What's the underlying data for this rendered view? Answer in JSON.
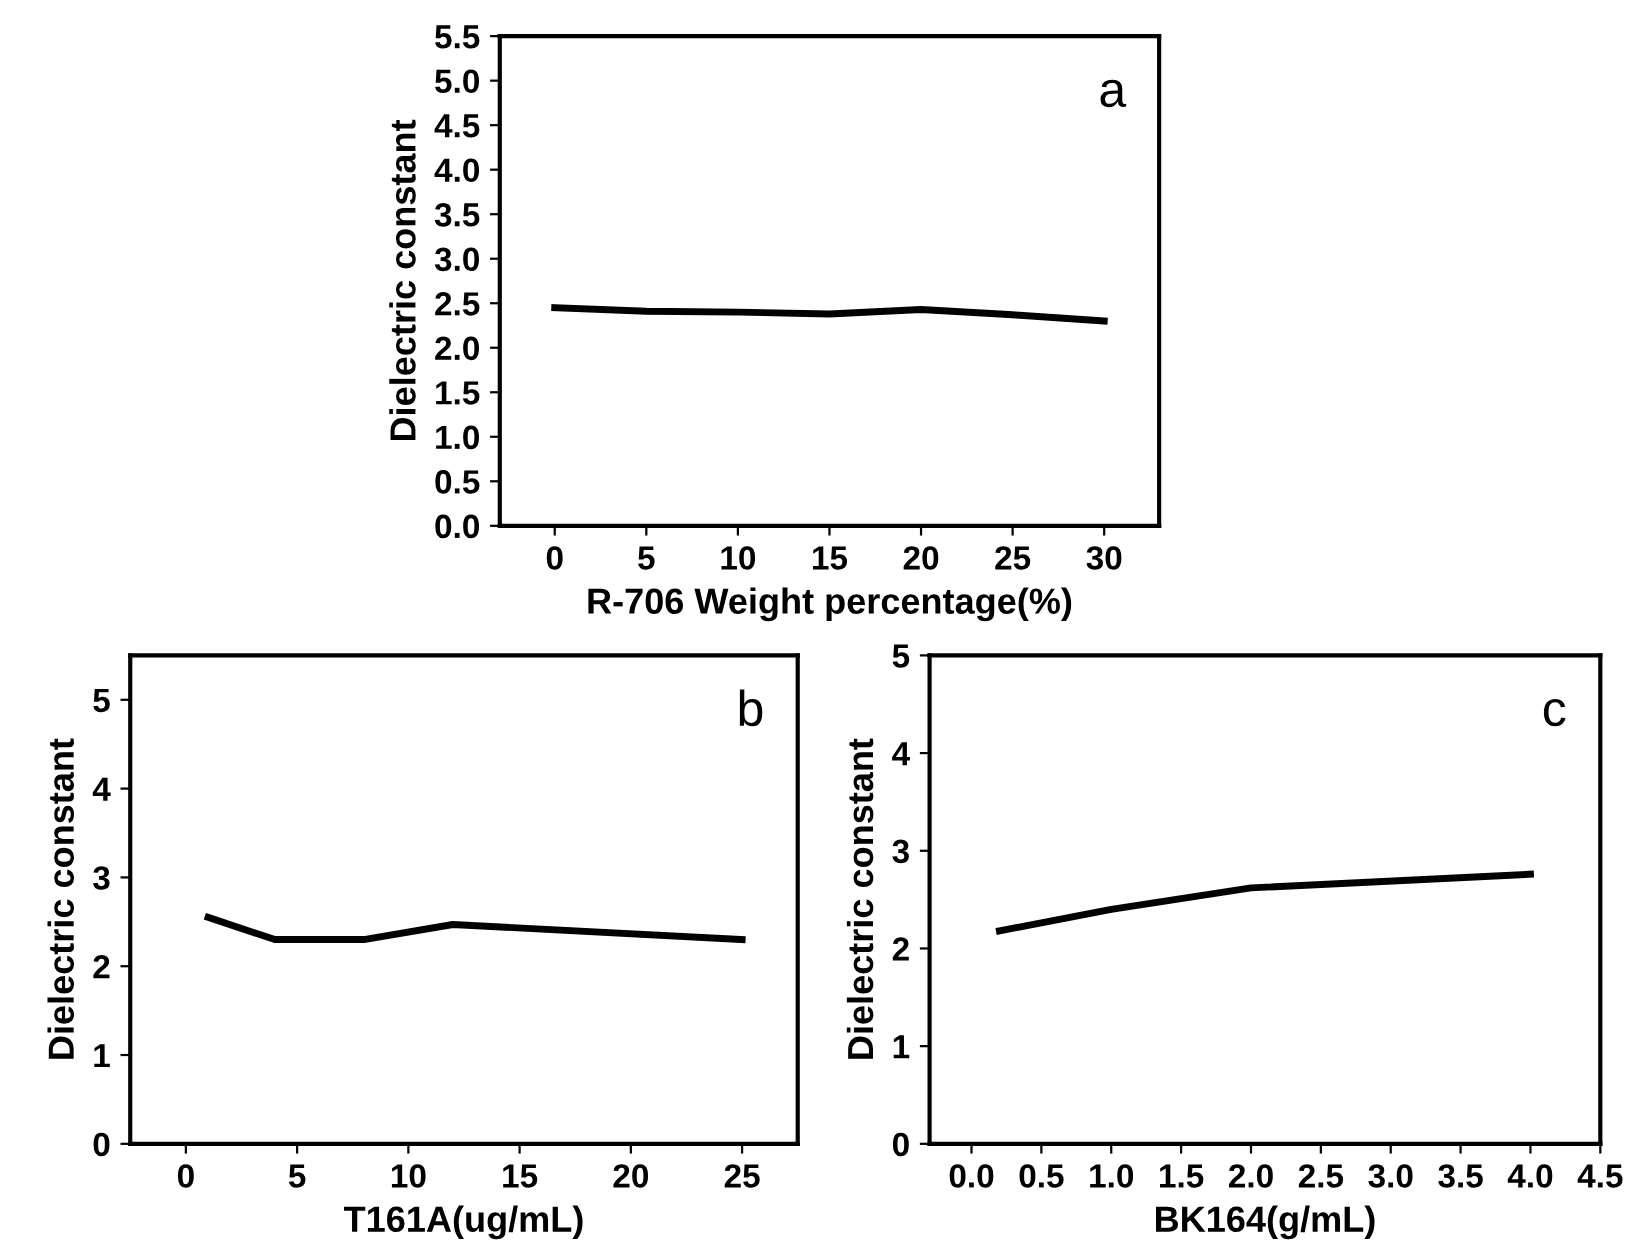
{
  "chart_data": [
    {
      "type": "line",
      "xlabel": "R-706 Weight percentage(%)",
      "ylabel": "Dielectric constant",
      "annotations": [
        "a"
      ],
      "x": [
        0,
        5,
        10,
        15,
        20,
        25,
        30
      ],
      "series": [
        {
          "color": "#000000",
          "values": [
            2.45,
            2.41,
            2.4,
            2.38,
            2.43,
            2.37,
            2.3
          ]
        }
      ],
      "xlim": [
        -3,
        33
      ],
      "xticks": [
        0,
        5,
        10,
        15,
        20,
        25,
        30
      ],
      "ylim": [
        0,
        5.5
      ],
      "yticks": [
        {
          "value": 0,
          "label": "0.0"
        },
        {
          "value": 0.5,
          "label": "0.5"
        },
        {
          "value": 1,
          "label": "1.0"
        },
        {
          "value": 1.5,
          "label": "1.5"
        },
        {
          "value": 2,
          "label": "2.0"
        },
        {
          "value": 2.5,
          "label": "2.5"
        },
        {
          "value": 3,
          "label": "3.0"
        },
        {
          "value": 3.5,
          "label": "3.5"
        },
        {
          "value": 4,
          "label": "4.0"
        },
        {
          "value": 4.5,
          "label": "4.5"
        },
        {
          "value": 5,
          "label": "5.0"
        },
        {
          "value": 5.5,
          "label": "5.5"
        }
      ]
    },
    {
      "type": "line",
      "xlabel": "T161A(ug/mL)",
      "ylabel": "Dielectric constant",
      "annotations": [
        "b"
      ],
      "x": [
        1,
        4,
        8,
        12,
        25
      ],
      "series": [
        {
          "color": "#000000",
          "values": [
            2.55,
            2.3,
            2.3,
            2.47,
            2.3
          ]
        }
      ],
      "xlim": [
        -2.5,
        27.5
      ],
      "xticks": [
        0,
        5,
        10,
        15,
        20,
        25
      ],
      "ylim": [
        0,
        5.5
      ],
      "yticks": [
        0,
        1,
        2,
        3,
        4,
        5
      ]
    },
    {
      "type": "line",
      "xlabel": "BK164(g/mL)",
      "ylabel": "Dielectric constant",
      "annotations": [
        "c"
      ],
      "x": [
        0.2,
        1,
        2,
        4
      ],
      "series": [
        {
          "color": "#000000",
          "values": [
            2.18,
            2.4,
            2.62,
            2.76
          ]
        }
      ],
      "xlim": [
        -0.3,
        4.5
      ],
      "xticks": [
        {
          "value": 0,
          "label": "0.0"
        },
        {
          "value": 0.5,
          "label": "0.5"
        },
        {
          "value": 1,
          "label": "1.0"
        },
        {
          "value": 1.5,
          "label": "1.5"
        },
        {
          "value": 2,
          "label": "2.0"
        },
        {
          "value": 2.5,
          "label": "2.5"
        },
        {
          "value": 3,
          "label": "3.0"
        },
        {
          "value": 3.5,
          "label": "3.5"
        },
        {
          "value": 4,
          "label": "4.0"
        },
        {
          "value": 4.5,
          "label": "4.5"
        }
      ],
      "ylim": [
        0,
        5
      ],
      "yticks": [
        0,
        1,
        2,
        3,
        4,
        5
      ]
    }
  ]
}
